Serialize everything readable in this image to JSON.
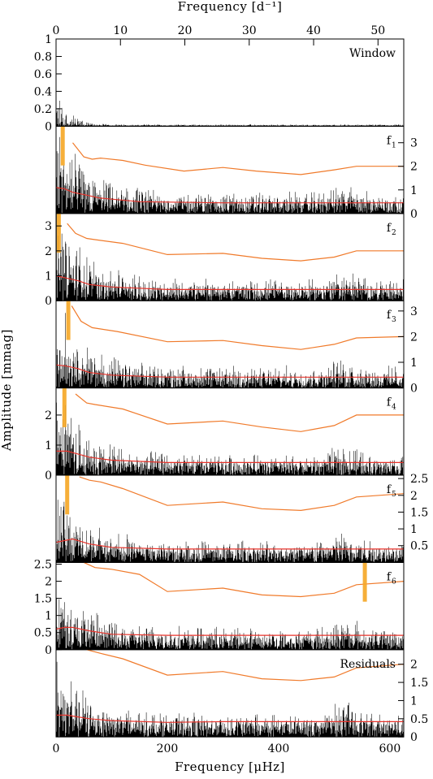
{
  "chart_data": {
    "type": "line",
    "xlabel_bottom": "Frequency [μHz]",
    "xlabel_top": "Frequency [d⁻¹]",
    "ylabel": "Amplitude [mmag]",
    "x_unit_bottom": "μHz",
    "x_unit_top": "d⁻¹",
    "xlim_uHz": [
      0,
      625
    ],
    "xlim_per_day": [
      0,
      54
    ],
    "xticks_bottom": [
      "0",
      "200",
      "400",
      "600"
    ],
    "xticks_top": [
      "0",
      "10",
      "20",
      "30",
      "40",
      "50"
    ],
    "panels": [
      {
        "label": "Window",
        "label_sub": "",
        "ylim": [
          0,
          1.0
        ],
        "yticks": [
          "0",
          "0.2",
          "0.4",
          "0.6",
          "0.8",
          "1"
        ],
        "yaxis_side": "left",
        "spectrum": {
          "scale": 0.35,
          "decay": 20,
          "floor": 0.015,
          "level": 0.01
        },
        "peak_uHz": null,
        "threshold": null,
        "noise": null
      },
      {
        "label": "f",
        "label_sub": "1",
        "ylim": [
          0,
          3.7
        ],
        "yticks": [
          "0",
          "1",
          "2",
          "3"
        ],
        "yaxis_side": "right",
        "spectrum": {
          "scale": 1.4,
          "decay": 55,
          "floor": 0.7,
          "level": 0.25
        },
        "peak_uHz": 12,
        "threshold": {
          "x": [
            30,
            50,
            65,
            80,
            120,
            160,
            230,
            300,
            360,
            440,
            500,
            540,
            625
          ],
          "y": [
            3.0,
            2.4,
            2.3,
            2.35,
            2.25,
            2.05,
            1.8,
            1.95,
            1.8,
            1.65,
            1.85,
            2.0,
            2.0
          ]
        },
        "noise": {
          "x": [
            0,
            15,
            30,
            50,
            80,
            150,
            300,
            420,
            500,
            625
          ],
          "y": [
            1.1,
            1.05,
            0.9,
            0.8,
            0.65,
            0.5,
            0.45,
            0.45,
            0.45,
            0.45
          ]
        }
      },
      {
        "label": "f",
        "label_sub": "2",
        "ylim": [
          0,
          3.5
        ],
        "yticks": [
          "0",
          "1",
          "2",
          "3"
        ],
        "yaxis_side": "left",
        "spectrum": {
          "scale": 1.4,
          "decay": 55,
          "floor": 0.65,
          "level": 0.25
        },
        "peak_uHz": 5,
        "threshold": {
          "x": [
            20,
            35,
            55,
            70,
            120,
            200,
            300,
            370,
            440,
            500,
            540,
            625
          ],
          "y": [
            3.1,
            2.7,
            2.5,
            2.45,
            2.3,
            1.85,
            1.9,
            1.7,
            1.6,
            1.75,
            2.0,
            2.0
          ]
        },
        "noise": {
          "x": [
            0,
            20,
            40,
            60,
            100,
            200,
            300,
            450,
            625
          ],
          "y": [
            1.0,
            0.9,
            0.8,
            0.65,
            0.55,
            0.45,
            0.45,
            0.45,
            0.45
          ]
        }
      },
      {
        "label": "f",
        "label_sub": "3",
        "ylim": [
          0,
          3.4
        ],
        "yticks": [
          "0",
          "1",
          "2",
          "3"
        ],
        "yaxis_side": "right",
        "spectrum": {
          "scale": 1.3,
          "decay": 55,
          "floor": 0.6,
          "level": 0.25
        },
        "peak_uHz": 22,
        "threshold": {
          "x": [
            28,
            45,
            65,
            110,
            200,
            300,
            370,
            440,
            500,
            540,
            625
          ],
          "y": [
            3.2,
            2.6,
            2.35,
            2.2,
            1.8,
            1.85,
            1.65,
            1.5,
            1.7,
            1.95,
            2.0
          ]
        },
        "noise": {
          "x": [
            0,
            20,
            40,
            60,
            100,
            200,
            300,
            450,
            625
          ],
          "y": [
            0.9,
            0.85,
            0.75,
            0.6,
            0.5,
            0.42,
            0.42,
            0.42,
            0.42
          ]
        }
      },
      {
        "label": "f",
        "label_sub": "4",
        "ylim": [
          0,
          2.9
        ],
        "yticks": [
          "0",
          "1",
          "2"
        ],
        "yaxis_side": "left",
        "spectrum": {
          "scale": 1.1,
          "decay": 55,
          "floor": 0.55,
          "level": 0.2
        },
        "peak_uHz": 15,
        "threshold": {
          "x": [
            35,
            55,
            70,
            120,
            200,
            300,
            370,
            440,
            500,
            540,
            625
          ],
          "y": [
            2.7,
            2.4,
            2.35,
            2.2,
            1.7,
            1.8,
            1.6,
            1.45,
            1.65,
            2.0,
            2.0
          ]
        },
        "noise": {
          "x": [
            0,
            20,
            40,
            60,
            100,
            200,
            300,
            450,
            625
          ],
          "y": [
            0.8,
            0.8,
            0.7,
            0.6,
            0.5,
            0.42,
            0.42,
            0.42,
            0.42
          ]
        }
      },
      {
        "label": "f",
        "label_sub": "5",
        "ylim": [
          0,
          2.6
        ],
        "yticks": [
          "0.5",
          "1",
          "1.5",
          "2",
          "2.5"
        ],
        "yaxis_side": "right",
        "spectrum": {
          "scale": 0.9,
          "decay": 55,
          "floor": 0.5,
          "level": 0.2
        },
        "peak_uHz": 20,
        "threshold": {
          "x": [
            42,
            60,
            80,
            120,
            200,
            300,
            370,
            440,
            500,
            540,
            625
          ],
          "y": [
            2.55,
            2.45,
            2.4,
            2.2,
            1.7,
            1.8,
            1.6,
            1.55,
            1.7,
            1.95,
            2.05
          ]
        },
        "noise": {
          "x": [
            0,
            15,
            30,
            60,
            100,
            200,
            300,
            450,
            625
          ],
          "y": [
            0.6,
            0.65,
            0.7,
            0.55,
            0.45,
            0.4,
            0.4,
            0.4,
            0.4
          ]
        }
      },
      {
        "label": "f",
        "label_sub": "6",
        "ylim": [
          0,
          2.55
        ],
        "yticks": [
          "0",
          "0.5",
          "1",
          "1.5",
          "2",
          "2.5"
        ],
        "yaxis_side": "left",
        "spectrum": {
          "scale": 0.85,
          "decay": 55,
          "floor": 0.5,
          "level": 0.2
        },
        "peak_uHz": 555,
        "threshold": {
          "x": [
            50,
            70,
            100,
            150,
            200,
            300,
            370,
            440,
            500,
            540,
            625
          ],
          "y": [
            2.55,
            2.4,
            2.35,
            2.2,
            1.7,
            1.8,
            1.6,
            1.55,
            1.65,
            1.9,
            2.0
          ]
        },
        "noise": {
          "x": [
            0,
            15,
            30,
            60,
            100,
            200,
            300,
            450,
            625
          ],
          "y": [
            0.6,
            0.65,
            0.65,
            0.55,
            0.45,
            0.42,
            0.42,
            0.42,
            0.42
          ]
        }
      },
      {
        "label": "Residuals",
        "label_sub": "",
        "ylim": [
          0,
          2.4
        ],
        "yticks": [
          "0",
          "0.5",
          "1",
          "1.5",
          "2"
        ],
        "yaxis_side": "right",
        "spectrum": {
          "scale": 0.85,
          "decay": 55,
          "floor": 0.5,
          "level": 0.2
        },
        "peak_uHz": null,
        "threshold": {
          "x": [
            55,
            80,
            120,
            200,
            300,
            370,
            440,
            500,
            540,
            625
          ],
          "y": [
            2.4,
            2.3,
            2.15,
            1.7,
            1.8,
            1.6,
            1.55,
            1.65,
            1.9,
            2.0
          ]
        },
        "noise": {
          "x": [
            0,
            20,
            40,
            60,
            100,
            200,
            300,
            450,
            625
          ],
          "y": [
            0.6,
            0.6,
            0.55,
            0.5,
            0.45,
            0.4,
            0.42,
            0.42,
            0.42
          ]
        }
      }
    ],
    "colors": {
      "spectrum": "#000000",
      "threshold": "#f07a2a",
      "noise": "#e8322a",
      "peak_marker": "#f5a623"
    }
  }
}
